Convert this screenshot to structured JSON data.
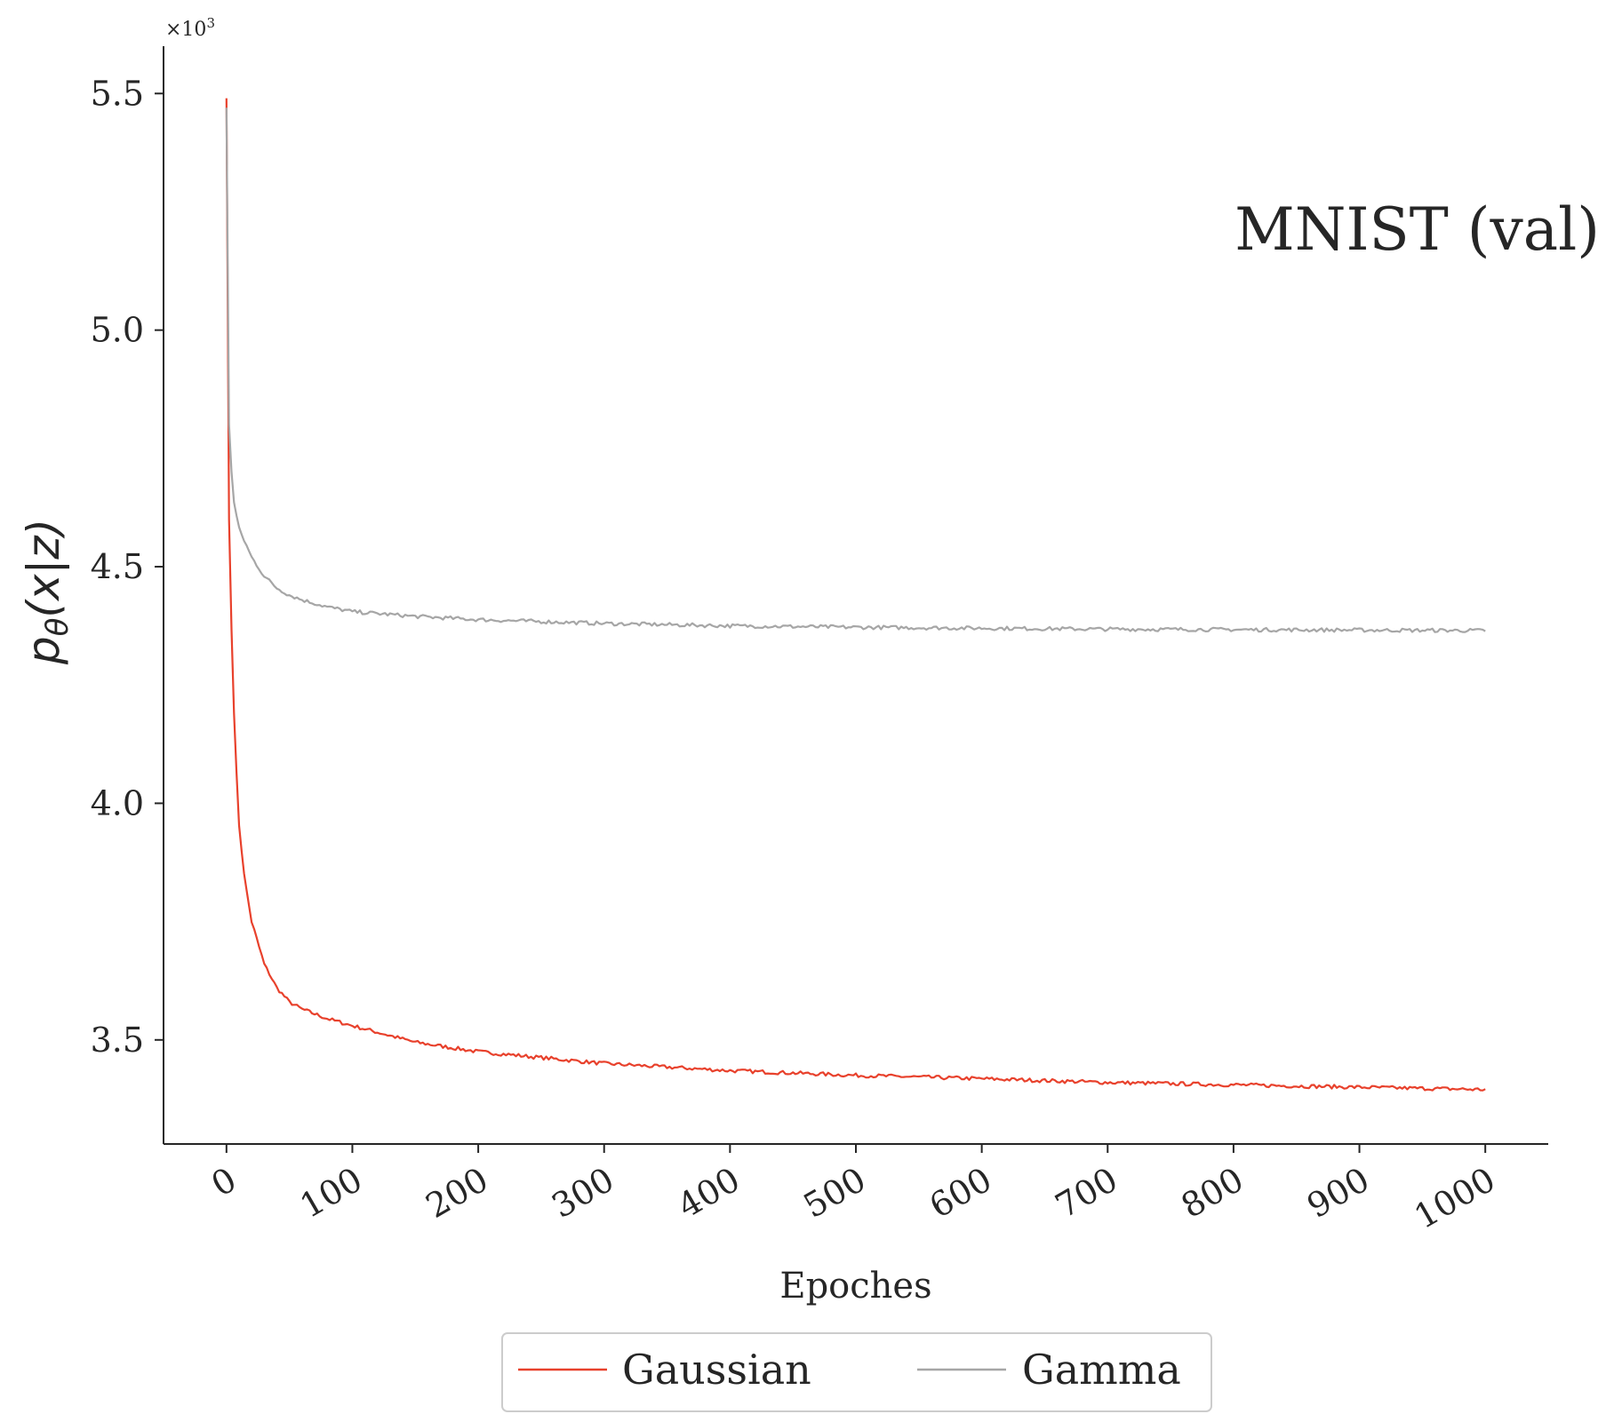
{
  "chart_data": {
    "type": "line",
    "annotation": "MNIST (val)",
    "xlabel": "Epoches",
    "ylabel": {
      "base": "p",
      "sub": "θ",
      "arg": "(x|z)"
    },
    "y_offset_label": {
      "base": "×10",
      "exp": "3"
    },
    "xlim": [
      -50,
      1050
    ],
    "ylim": [
      3.28,
      5.6
    ],
    "x_ticks": [
      0,
      100,
      200,
      300,
      400,
      500,
      600,
      700,
      800,
      900,
      1000
    ],
    "x_tick_labels": [
      "0",
      "100",
      "200",
      "300",
      "400",
      "500",
      "600",
      "700",
      "800",
      "900",
      "1000"
    ],
    "y_ticks": [
      3.5,
      4.0,
      4.5,
      5.0,
      5.5
    ],
    "y_tick_labels": [
      "3.5",
      "4.0",
      "4.5",
      "5.0",
      "5.5"
    ],
    "grid": false,
    "legend_position": "bottom-center-outside",
    "series": [
      {
        "name": "Gaussian",
        "color": "#e8412c",
        "x": [
          0,
          2,
          5,
          10,
          15,
          20,
          30,
          40,
          50,
          60,
          80,
          100,
          150,
          200,
          300,
          400,
          500,
          600,
          700,
          800,
          900,
          1000
        ],
        "y": [
          5.49,
          4.6,
          4.25,
          3.95,
          3.83,
          3.75,
          3.66,
          3.61,
          3.58,
          3.565,
          3.545,
          3.53,
          3.495,
          3.475,
          3.45,
          3.435,
          3.425,
          3.418,
          3.41,
          3.405,
          3.4,
          3.395
        ]
      },
      {
        "name": "Gamma",
        "color": "#a6a6a6",
        "x": [
          0,
          2,
          5,
          10,
          15,
          20,
          30,
          40,
          50,
          60,
          80,
          100,
          150,
          200,
          300,
          400,
          500,
          600,
          700,
          800,
          900,
          1000
        ],
        "y": [
          5.47,
          4.8,
          4.65,
          4.58,
          4.55,
          4.52,
          4.48,
          4.455,
          4.44,
          4.43,
          4.415,
          4.405,
          4.395,
          4.388,
          4.38,
          4.375,
          4.372,
          4.37,
          4.368,
          4.367,
          4.366,
          4.365
        ]
      }
    ]
  }
}
